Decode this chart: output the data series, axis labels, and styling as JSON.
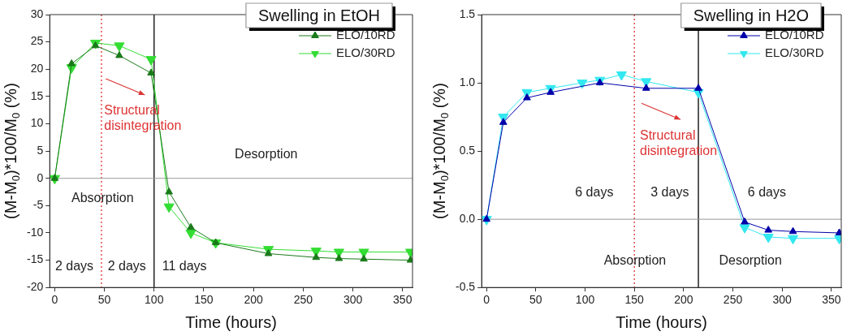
{
  "chart_data": [
    {
      "type": "line",
      "title": "Swelling in EtOH",
      "xlabel": "Time (hours)",
      "ylabel": "(M-M$_{0}$)*100/M$_{0}$ (%)",
      "xlim": [
        -5,
        360
      ],
      "xticks": [
        0,
        50,
        100,
        150,
        200,
        250,
        300,
        350
      ],
      "ylim": [
        -20,
        30
      ],
      "yticks": [
        -20,
        -15,
        -10,
        -5,
        0,
        5,
        10,
        15,
        20,
        25,
        30
      ],
      "grid": false,
      "legend": "top right",
      "series": [
        {
          "name": "ELO/10RD",
          "color": "#1a7a1a",
          "marker": "triangle",
          "x": [
            0,
            17,
            41,
            65,
            97,
            115,
            137,
            162,
            215,
            263,
            286,
            311,
            358
          ],
          "values": [
            0,
            21,
            24.3,
            22.5,
            19.3,
            -2.5,
            -9,
            -11.8,
            -13.8,
            -14.5,
            -14.7,
            -14.8,
            -15
          ]
        },
        {
          "name": "ELO/30RD",
          "color": "#33dd33",
          "marker": "triangle_down",
          "x": [
            0,
            17,
            41,
            65,
            97,
            115,
            137,
            162,
            215,
            263,
            286,
            311,
            358
          ],
          "values": [
            0,
            20.3,
            24.8,
            24.3,
            21.8,
            -5.2,
            -10,
            -11.8,
            -13,
            -13.3,
            -13.5,
            -13.5,
            -13.5
          ]
        }
      ],
      "ref_lines": [
        {
          "axis": "x",
          "value": 47,
          "color": "#dd3333",
          "line_style": "dotted"
        },
        {
          "axis": "x",
          "value": 100,
          "color": "#000000",
          "line_style": "solid"
        },
        {
          "axis": "y",
          "value": 0,
          "color": "#999999",
          "line_style": "solid"
        }
      ],
      "annotations": [
        "Structural\ndisintegration",
        "Desorption",
        "Absorption",
        "2 days",
        "2 days",
        "11 days"
      ]
    },
    {
      "type": "line",
      "title": "Swelling in H2O",
      "xlabel": "Time (hours)",
      "ylabel": "(M-M$_{0}$)*100/M$_{0}$ (%)",
      "xlim": [
        -5,
        360
      ],
      "xticks": [
        0,
        50,
        100,
        150,
        200,
        250,
        300,
        350
      ],
      "ylim": [
        -0.5,
        1.5
      ],
      "yticks": [
        -0.5,
        {
          "value": 0,
          "label": "0.0"
        },
        0.5,
        {
          "value": 1,
          "label": "1.0"
        },
        1.5
      ],
      "grid": false,
      "legend": "top right",
      "series": [
        {
          "name": "ELO/10RD",
          "color": "#0000aa",
          "marker": "triangle",
          "x": [
            0,
            17,
            41,
            65,
            115,
            162,
            215,
            262,
            286,
            311,
            358
          ],
          "values": [
            0,
            0.71,
            0.89,
            0.93,
            1.0,
            0.96,
            0.96,
            -0.02,
            -0.08,
            -0.09,
            -0.1
          ]
        },
        {
          "name": "ELO/30RD",
          "color": "#33e8f0",
          "marker": "triangle_down",
          "x": [
            0,
            17,
            41,
            65,
            97,
            115,
            137,
            162,
            215,
            262,
            286,
            311,
            358
          ],
          "values": [
            0,
            0.75,
            0.93,
            0.96,
            1.0,
            1.02,
            1.06,
            1.01,
            0.93,
            -0.06,
            -0.13,
            -0.14,
            -0.14
          ]
        }
      ],
      "ref_lines": [
        {
          "axis": "x",
          "value": 150,
          "color": "#dd3333",
          "line_style": "dotted"
        },
        {
          "axis": "x",
          "value": 215,
          "color": "#000000",
          "line_style": "solid"
        },
        {
          "axis": "y",
          "value": 0,
          "color": "#999999",
          "line_style": "solid"
        }
      ],
      "annotations": [
        "Structural\ndisintegration",
        "6 days",
        "3 days",
        "6 days",
        "Absorption",
        "Desorption"
      ]
    }
  ]
}
